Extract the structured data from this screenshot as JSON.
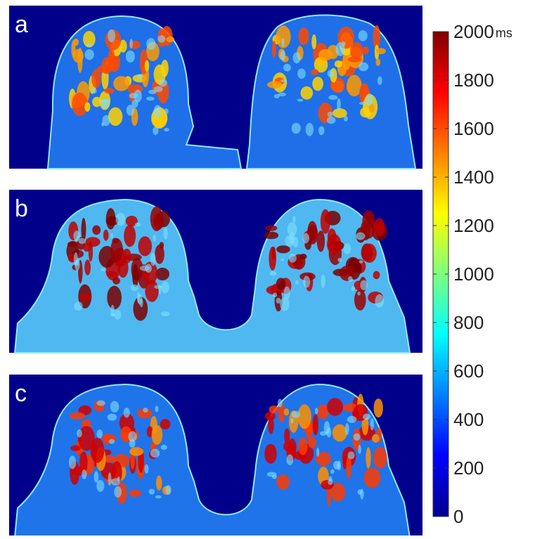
{
  "panels": [
    {
      "label": "a"
    },
    {
      "label": "b"
    },
    {
      "label": "c"
    }
  ],
  "colorbar": {
    "lim": [
      0,
      2000
    ],
    "ticks": [
      0,
      200,
      400,
      600,
      800,
      1000,
      1200,
      1400,
      1600,
      1800,
      2000
    ],
    "unit": "ms"
  }
}
